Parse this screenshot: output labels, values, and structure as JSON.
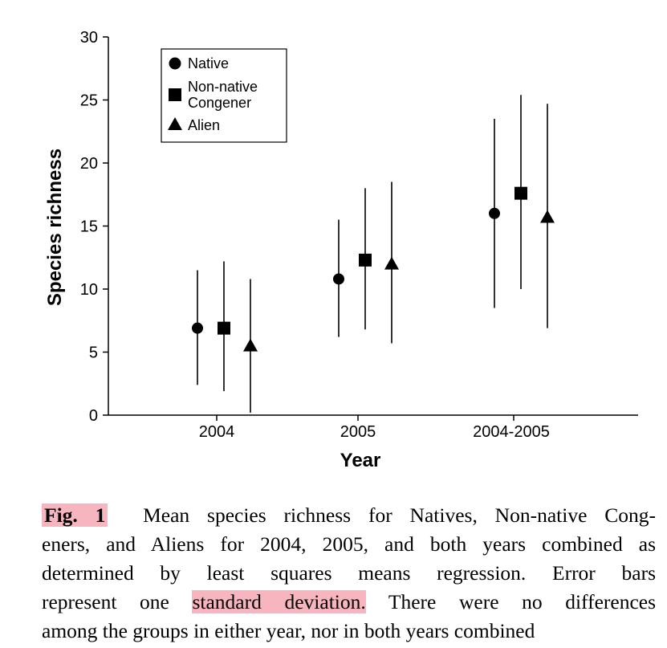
{
  "chart_data": {
    "type": "scatter",
    "title": "",
    "xlabel": "Year",
    "ylabel": "Species richness",
    "categories": [
      "2004",
      "2005",
      "2004-2005"
    ],
    "ylim": [
      0,
      30
    ],
    "yticks": [
      0,
      5,
      10,
      15,
      20,
      25,
      30
    ],
    "grid": false,
    "legend_position": "top-left",
    "error_bars": "one standard deviation",
    "series": [
      {
        "name": "Native",
        "marker": "circle",
        "values": [
          6.9,
          10.8,
          16.0
        ],
        "lower": [
          2.4,
          6.2,
          8.5
        ],
        "upper": [
          11.5,
          15.5,
          23.5
        ]
      },
      {
        "name": "Non-native Congener",
        "marker": "square",
        "values": [
          6.9,
          12.3,
          17.6
        ],
        "lower": [
          1.9,
          6.8,
          10.0
        ],
        "upper": [
          12.2,
          18.0,
          25.4
        ]
      },
      {
        "name": "Alien",
        "marker": "triangle",
        "values": [
          5.5,
          12.0,
          15.7
        ],
        "lower": [
          0.2,
          5.7,
          6.9
        ],
        "upper": [
          10.8,
          18.5,
          24.7
        ]
      }
    ],
    "legend_labels": {
      "native": "Native",
      "congener_line1": "Non-native",
      "congener_line2": "Congener",
      "alien": "Alien"
    }
  },
  "caption": {
    "label": "Fig. 1",
    "line1": "Mean species richness for Natives, Non-native Cong-",
    "line2": "eners, and Aliens for 2004, 2005, and both years combined as",
    "line3": "determined by least squares means regression. Error bars",
    "line4_pre": "represent one",
    "line4_highlight": "standard deviation.",
    "line4_post": "There were no differences",
    "line5": "among the groups in either year, nor in both years combined"
  },
  "colors": {
    "marker": "#000000",
    "highlight": "#f7b6bf"
  }
}
